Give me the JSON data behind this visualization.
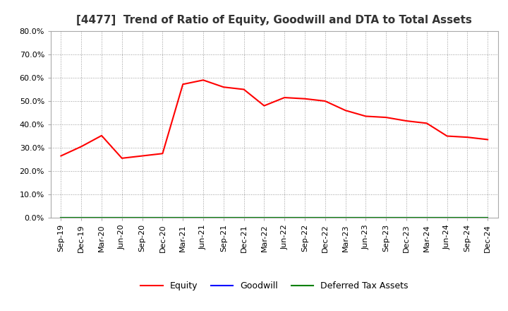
{
  "title": "[4477]  Trend of Ratio of Equity, Goodwill and DTA to Total Assets",
  "x_labels": [
    "Sep-19",
    "Dec-19",
    "Mar-20",
    "Jun-20",
    "Sep-20",
    "Dec-20",
    "Mar-21",
    "Jun-21",
    "Sep-21",
    "Dec-21",
    "Mar-22",
    "Jun-22",
    "Sep-22",
    "Dec-22",
    "Mar-23",
    "Jun-23",
    "Sep-23",
    "Dec-23",
    "Mar-24",
    "Jun-24",
    "Sep-24",
    "Dec-24"
  ],
  "equity": [
    0.265,
    0.305,
    0.352,
    0.255,
    0.265,
    0.275,
    0.572,
    0.59,
    0.56,
    0.55,
    0.48,
    0.515,
    0.51,
    0.5,
    0.46,
    0.435,
    0.43,
    0.415,
    0.405,
    0.35,
    0.345,
    0.335
  ],
  "goodwill": [
    0.0,
    0.0,
    0.0,
    0.0,
    0.0,
    0.0,
    0.0,
    0.0,
    0.0,
    0.0,
    0.0,
    0.0,
    0.0,
    0.0,
    0.0,
    0.0,
    0.0,
    0.0,
    0.0,
    0.0,
    0.0,
    0.0
  ],
  "dta": [
    0.0,
    0.0,
    0.0,
    0.0,
    0.0,
    0.0,
    0.0,
    0.0,
    0.0,
    0.0,
    0.0,
    0.0,
    0.0,
    0.0,
    0.0,
    0.0,
    0.0,
    0.0,
    0.0,
    0.0,
    0.0,
    0.0
  ],
  "equity_color": "#ff0000",
  "goodwill_color": "#0000ff",
  "dta_color": "#008000",
  "ylim": [
    0.0,
    0.8
  ],
  "yticks": [
    0.0,
    0.1,
    0.2,
    0.3,
    0.4,
    0.5,
    0.6,
    0.7,
    0.8
  ],
  "background_color": "#ffffff",
  "grid_color": "#999999",
  "title_fontsize": 11,
  "tick_fontsize": 8,
  "legend_labels": [
    "Equity",
    "Goodwill",
    "Deferred Tax Assets"
  ],
  "legend_fontsize": 9
}
